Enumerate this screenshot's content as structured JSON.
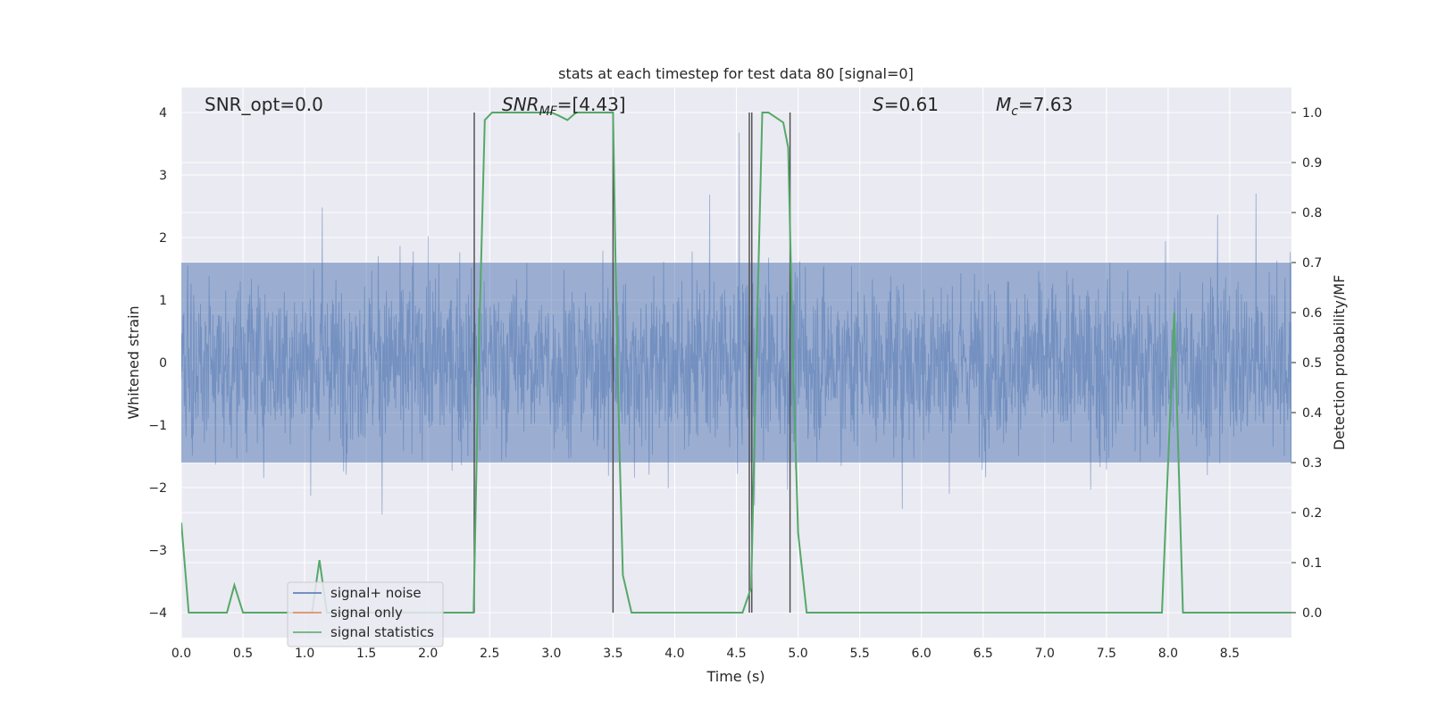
{
  "chart_data": {
    "type": "line",
    "title": "stats at each timestep for test data 80 [signal=0]",
    "xlabel": "Time (s)",
    "ylabel_left": "Whitened strain",
    "ylabel_right": "Detection probability/MF",
    "xlim": [
      0.0,
      9.0
    ],
    "ylim_left": [
      -4.4,
      4.4
    ],
    "ylim_right": [
      -0.05,
      1.05
    ],
    "xticks": [
      "0.0",
      "0.5",
      "1.0",
      "1.5",
      "2.0",
      "2.5",
      "3.0",
      "3.5",
      "4.0",
      "4.5",
      "5.0",
      "5.5",
      "6.0",
      "6.5",
      "7.0",
      "7.5",
      "8.0",
      "8.5"
    ],
    "yticks_left": [
      "−4",
      "−3",
      "−2",
      "−1",
      "0",
      "1",
      "2",
      "3",
      "4"
    ],
    "yticks_right": [
      "0.0",
      "0.1",
      "0.2",
      "0.3",
      "0.4",
      "0.5",
      "0.6",
      "0.7",
      "0.8",
      "0.9",
      "1.0"
    ],
    "grid": true,
    "annotations": {
      "snr_opt": "SNR_opt=0.0",
      "snr_mf_main": "SNR",
      "snr_mf_sub": "MF",
      "snr_mf_value": "=[4.43]",
      "s_sym": "S",
      "s_value": "=0.61",
      "mc_sym": "M",
      "mc_sub": "c",
      "mc_value": "=7.63"
    },
    "legend": {
      "placement": "lower-left",
      "entries": [
        "signal+ noise",
        "signal only",
        "signal statistics"
      ]
    },
    "series": [
      {
        "name": "signal+ noise",
        "color": "#4c72b0",
        "style": "dense noise trace, core band approx ±1.6, peaks to ±3.9",
        "envelope": {
          "core": 1.6,
          "max": 3.9,
          "min": -3.9
        }
      },
      {
        "name": "signal only",
        "color": "#dd8452",
        "values": []
      },
      {
        "name": "signal statistics",
        "color": "#55a868",
        "x": [
          0.0,
          0.06,
          0.12,
          0.2,
          0.3,
          0.37,
          0.43,
          0.5,
          0.6,
          0.7,
          0.8,
          0.9,
          1.0,
          1.06,
          1.12,
          1.18,
          1.25,
          1.35,
          1.5,
          1.7,
          1.9,
          2.1,
          2.3,
          2.37,
          2.41,
          2.46,
          2.52,
          2.6,
          2.8,
          3.0,
          3.05,
          3.13,
          3.2,
          3.3,
          3.4,
          3.45,
          3.5,
          3.52,
          3.55,
          3.58,
          3.65,
          3.8,
          4.0,
          4.2,
          4.4,
          4.55,
          4.62,
          4.66,
          4.71,
          4.76,
          4.82,
          4.88,
          4.92,
          4.96,
          5.0,
          5.07,
          5.15,
          5.5,
          6.0,
          6.5,
          7.0,
          7.5,
          7.95,
          8.05,
          8.12,
          8.2,
          8.5,
          9.0
        ],
        "y": [
          0.18,
          0.0,
          0.0,
          0.0,
          0.0,
          0.0,
          0.055,
          0.0,
          0.0,
          0.0,
          0.0,
          0.0,
          0.0,
          0.0,
          0.105,
          0.0,
          0.0,
          0.0,
          0.0,
          0.0,
          0.0,
          0.0,
          0.0,
          0.0,
          0.5,
          0.985,
          1.0,
          1.0,
          1.0,
          1.0,
          0.995,
          0.985,
          1.0,
          1.0,
          1.0,
          1.0,
          1.0,
          0.7,
          0.35,
          0.075,
          0.0,
          0.0,
          0.0,
          0.0,
          0.0,
          0.0,
          0.05,
          0.5,
          1.0,
          1.0,
          0.99,
          0.98,
          0.93,
          0.5,
          0.16,
          0.0,
          0.0,
          0.0,
          0.0,
          0.0,
          0.0,
          0.0,
          0.0,
          0.6,
          0.0,
          0.0,
          0.0,
          0.0
        ]
      }
    ],
    "vertical_lines": {
      "color": "#4a4a4a",
      "x": [
        2.375,
        3.5,
        4.605,
        4.625,
        4.935
      ]
    }
  }
}
